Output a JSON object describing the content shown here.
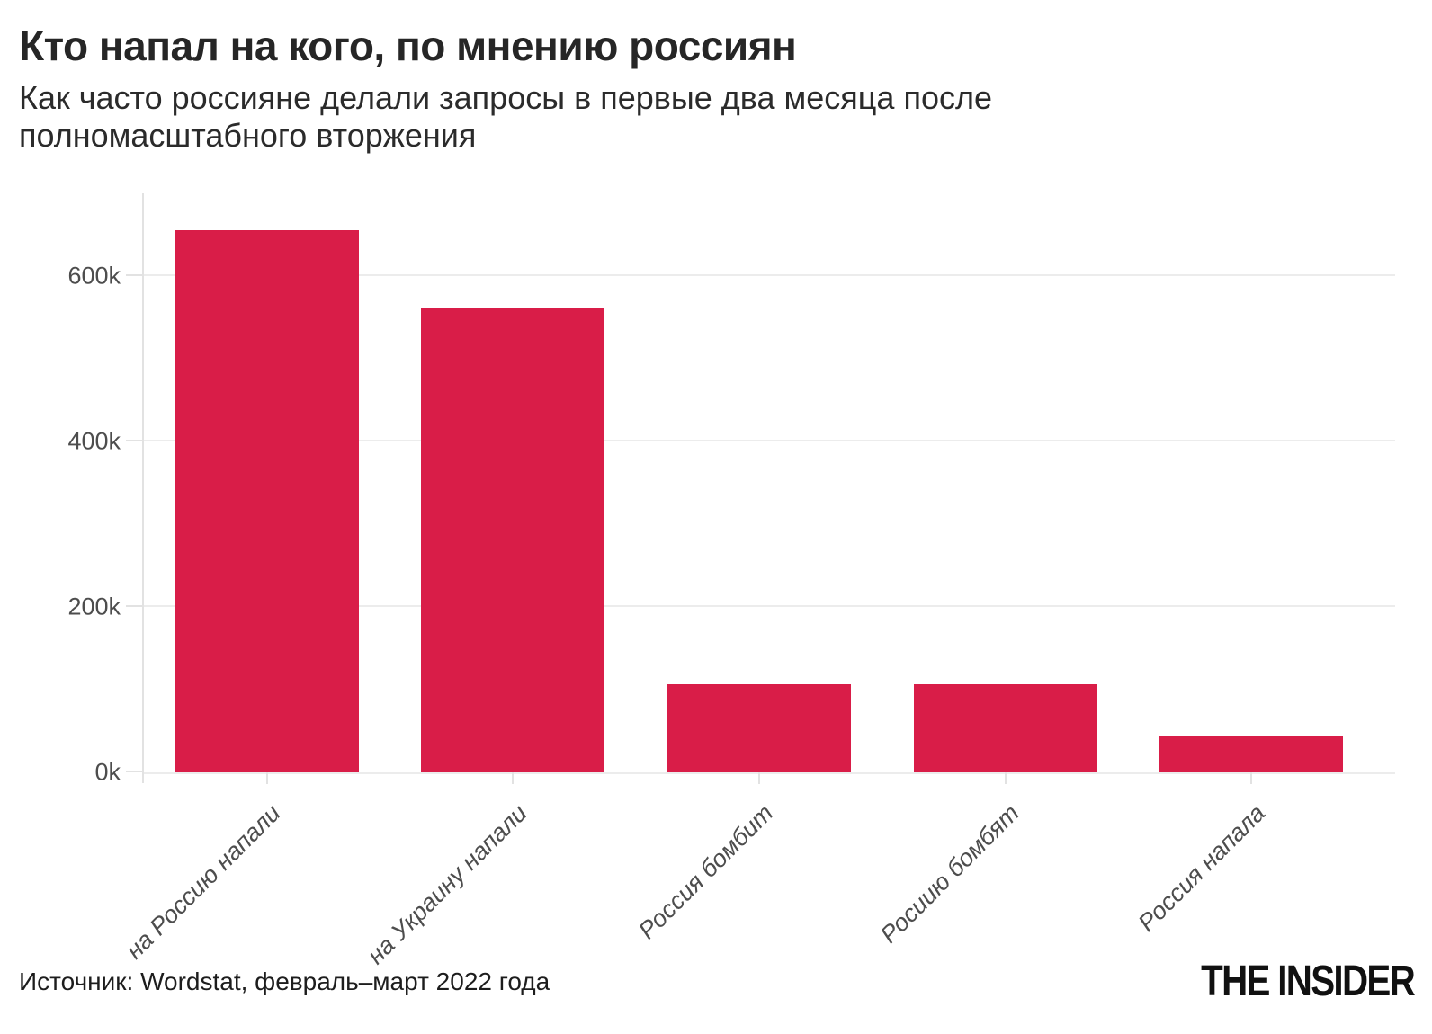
{
  "header": {
    "title": "Кто напал на кого, по мнению россиян",
    "subtitle": "Как часто россияне делали запросы в первые два месяца после полномасштабного вторжения"
  },
  "chart_data": {
    "type": "bar",
    "title": "Кто напал на кого, по мнению россиян",
    "subtitle": "Как часто россияне делали запросы в первые два месяца после полномасштабного вторжения",
    "categories": [
      "на Россию напали",
      "на Украину напали",
      "Россия бомбит",
      "Росиию бомбят",
      "Россия напала"
    ],
    "values": [
      655000,
      562000,
      107000,
      106000,
      44000
    ],
    "xlabel": "",
    "ylabel": "",
    "ylim": [
      0,
      700000
    ],
    "ytick_values": [
      0,
      200000,
      400000,
      600000
    ],
    "ytick_labels": [
      "0k",
      "200k",
      "400k",
      "600k"
    ],
    "grid": true,
    "legend": "none",
    "bar_color": "#d91d48",
    "gridline_color": "#ececec",
    "axis_color": "#e2e2e2",
    "tick_label_color": "#4d4d4d"
  },
  "footer": {
    "source": "Источник: Wordstat, февраль–март 2022 года",
    "logo": "THE INSIDER"
  }
}
